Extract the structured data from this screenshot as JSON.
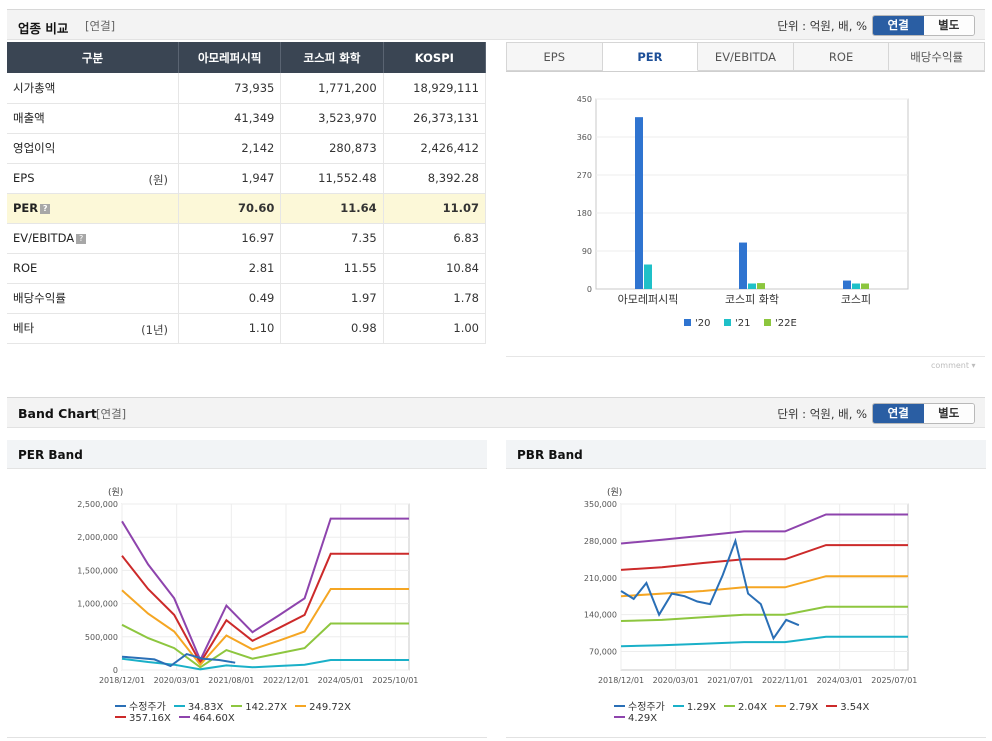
{
  "top_section": {
    "title": "업종 비교",
    "tag": "[연결]",
    "unit": "단위 : 억원, 배, %",
    "toggle": [
      "연결",
      "별도"
    ]
  },
  "comparison_table": {
    "headers": [
      "구분",
      "아모레퍼시픽",
      "코스피 화학",
      "KOSPI"
    ],
    "rows": [
      {
        "label": "시가총액",
        "sub": "",
        "values": [
          "73,935",
          "1,771,200",
          "18,929,111"
        ]
      },
      {
        "label": "매출액",
        "sub": "",
        "values": [
          "41,349",
          "3,523,970",
          "26,373,131"
        ]
      },
      {
        "label": "영업이익",
        "sub": "",
        "values": [
          "2,142",
          "280,873",
          "2,426,412"
        ]
      },
      {
        "label": "EPS",
        "sub": "(원)",
        "values": [
          "1,947",
          "11,552.48",
          "8,392.28"
        ]
      },
      {
        "label": "PER",
        "sub": "",
        "values": [
          "70.60",
          "11.64",
          "11.07"
        ]
      },
      {
        "label": "EV/EBITDA",
        "sub": "",
        "values": [
          "16.97",
          "7.35",
          "6.83"
        ]
      },
      {
        "label": "ROE",
        "sub": "",
        "values": [
          "2.81",
          "11.55",
          "10.84"
        ]
      },
      {
        "label": "배당수익률",
        "sub": "",
        "values": [
          "0.49",
          "1.97",
          "1.78"
        ]
      },
      {
        "label": "베타",
        "sub": "(1년)",
        "values": [
          "1.10",
          "0.98",
          "1.00"
        ]
      }
    ],
    "help_icon": "?"
  },
  "metric_tabs": [
    "EPS",
    "PER",
    "EV/EBITDA",
    "ROE",
    "배당수익률"
  ],
  "active_tab": "PER",
  "comment_label": "comment",
  "band_section": {
    "title": "Band Chart",
    "tag": "[연결]",
    "unit": "단위 : 억원, 배, %",
    "toggle": [
      "연결",
      "별도"
    ],
    "per_title": "PER Band",
    "pbr_title": "PBR Band"
  },
  "colors": {
    "header_dark": "#3a4553",
    "accent_blue": "#2a5ea3",
    "bar_20": "#2f74d0",
    "bar_21": "#1fc0c8",
    "bar_22E": "#8cc63e",
    "price": "#2a6fb6",
    "band1": "#1ab0c8",
    "band2": "#8dc63f",
    "band3": "#f5a623",
    "band4": "#cc2a2a",
    "band5": "#8e44ad"
  },
  "chart_data": [
    {
      "type": "bar",
      "categories": [
        "아모레퍼시픽",
        "코스피 화학",
        "코스피"
      ],
      "series": [
        {
          "name": "'20",
          "values": [
            407,
            110,
            20
          ]
        },
        {
          "name": "'21",
          "values": [
            58,
            13,
            13
          ]
        },
        {
          "name": "'22E",
          "values": [
            0,
            14,
            13
          ]
        }
      ],
      "yticks": [
        0,
        90,
        180,
        270,
        360,
        450
      ],
      "ylim": [
        0,
        450
      ],
      "legend": "bottom"
    },
    {
      "type": "line",
      "unit_label": "(원)",
      "xticks": [
        "2018/12/01",
        "2020/03/01",
        "2021/08/01",
        "2022/12/01",
        "2024/05/01",
        "2025/10/01"
      ],
      "yticks": [
        "0",
        "500,000",
        "1,000,000",
        "1,500,000",
        "2,000,000",
        "2,500,000"
      ],
      "ylim": [
        0,
        2500000
      ],
      "x": [
        0,
        1,
        2,
        3,
        4,
        5,
        6,
        7,
        8,
        9,
        10,
        11
      ],
      "series": [
        {
          "name": "수정주가",
          "values": [
            200000,
            180000,
            160000,
            60000,
            240000,
            170000,
            150000,
            110000,
            null,
            null,
            null,
            null
          ]
        },
        {
          "name": "34.83X",
          "values": [
            170000,
            120000,
            80000,
            10000,
            70000,
            40000,
            60000,
            80000,
            150000,
            150000,
            150000,
            150000
          ]
        },
        {
          "name": "142.27X",
          "values": [
            680000,
            480000,
            330000,
            40000,
            300000,
            170000,
            250000,
            330000,
            700000,
            700000,
            700000,
            700000
          ]
        },
        {
          "name": "249.72X",
          "values": [
            1200000,
            850000,
            580000,
            80000,
            520000,
            310000,
            440000,
            580000,
            1220000,
            1220000,
            1220000,
            1220000
          ]
        },
        {
          "name": "357.16X",
          "values": [
            1720000,
            1220000,
            830000,
            110000,
            750000,
            440000,
            630000,
            830000,
            1750000,
            1750000,
            1750000,
            1750000
          ]
        },
        {
          "name": "464.60X",
          "values": [
            2240000,
            1590000,
            1080000,
            150000,
            970000,
            570000,
            820000,
            1080000,
            2280000,
            2280000,
            2280000,
            2280000
          ]
        }
      ],
      "legend": "bottom"
    },
    {
      "type": "line",
      "unit_label": "(원)",
      "xticks": [
        "2018/12/01",
        "2020/03/01",
        "2021/07/01",
        "2022/11/01",
        "2024/03/01",
        "2025/07/01"
      ],
      "yticks": [
        "70,000",
        "140,000",
        "210,000",
        "280,000",
        "350,000"
      ],
      "ylim": [
        35000,
        350000
      ],
      "series": [
        {
          "name": "수정주가",
          "values": [
            185000,
            170000,
            200000,
            140000,
            180000,
            175000,
            165000,
            160000,
            215000,
            280000,
            180000,
            160000,
            95000,
            130000,
            120000
          ]
        },
        {
          "name": "1.29X",
          "values": [
            80000,
            82000,
            85000,
            88000,
            88000,
            98000,
            98000,
            98000
          ]
        },
        {
          "name": "2.04X",
          "values": [
            128000,
            130000,
            135000,
            140000,
            140000,
            155000,
            155000,
            155000
          ]
        },
        {
          "name": "2.79X",
          "values": [
            175000,
            180000,
            185000,
            192000,
            192000,
            213000,
            213000,
            213000
          ]
        },
        {
          "name": "3.54X",
          "values": [
            225000,
            230000,
            238000,
            245000,
            245000,
            272000,
            272000,
            272000
          ]
        },
        {
          "name": "4.29X",
          "values": [
            275000,
            282000,
            290000,
            298000,
            298000,
            330000,
            330000,
            330000
          ]
        }
      ],
      "legend": "bottom"
    }
  ]
}
